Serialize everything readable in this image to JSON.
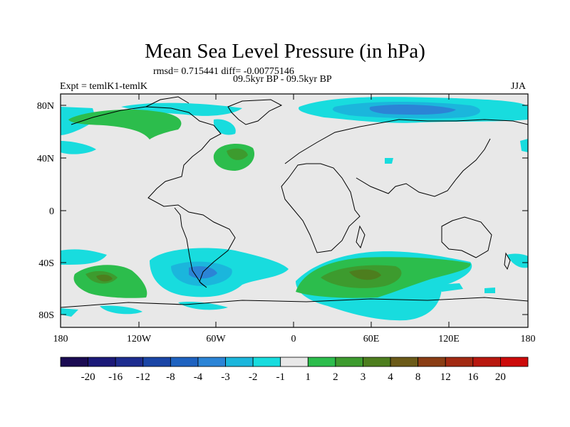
{
  "map": {
    "title": "Mean Sea Level Pressure (in hPa)",
    "stats_line": "rmsd= 0.715441 diff= -0.00775146",
    "period": "09.5kyr BP - 09.5kyr BP",
    "experiment": "Expt = temlK1-temlK",
    "season": "JJA",
    "lat_ticks": [
      "80N",
      "40N",
      "0",
      "40S",
      "80S"
    ],
    "lon_ticks": [
      "180",
      "120W",
      "60W",
      "0",
      "60E",
      "120E",
      "180"
    ]
  },
  "legend": {
    "labels": [
      "-20",
      "-16",
      "-12",
      "-8",
      "-4",
      "-3",
      "-2",
      "-1",
      "1",
      "2",
      "3",
      "4",
      "8",
      "12",
      "16",
      "20"
    ],
    "colors": [
      "#1a0a52",
      "#1b1978",
      "#1d2c8f",
      "#1a45a6",
      "#1e62c0",
      "#2b84d6",
      "#1bb6dc",
      "#18dcde",
      "#e8e8e8",
      "#2cbd4c",
      "#3d9b2e",
      "#4d7e1e",
      "#6b5a18",
      "#8a3d14",
      "#a22a12",
      "#b8180f",
      "#cc0a0a"
    ]
  },
  "colors": {
    "land_outline": "#000000",
    "neutral": "#e8e8e8"
  }
}
